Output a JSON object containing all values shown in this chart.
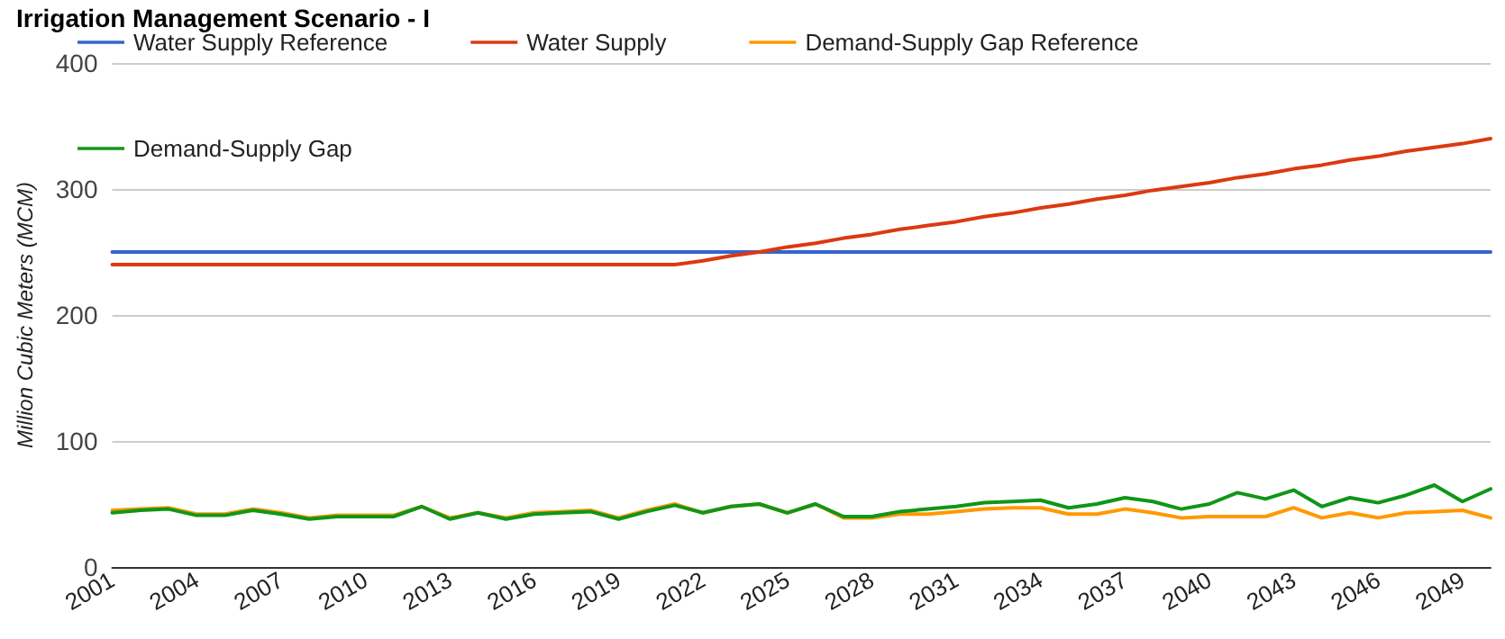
{
  "chart_data": {
    "type": "line",
    "title": "Irrigation Management Scenario - I",
    "ylabel": "Million Cubic Meters (MCM)",
    "categories": [
      "2001",
      null,
      null,
      "2004",
      null,
      null,
      "2007",
      null,
      null,
      "2010",
      null,
      null,
      "2013",
      null,
      null,
      "2016",
      null,
      null,
      "2019",
      null,
      null,
      "2022",
      null,
      null,
      "2025",
      null,
      null,
      "2028",
      null,
      null,
      "2031",
      null,
      null,
      "2034",
      null,
      null,
      "2037",
      null,
      null,
      "2040",
      null,
      null,
      "2043",
      null,
      null,
      "2046",
      null,
      null,
      "2049",
      null
    ],
    "series": [
      {
        "name": "Water Supply Reference",
        "color": "#3366cc",
        "values": [
          250,
          250,
          250,
          250,
          250,
          250,
          250,
          250,
          250,
          250,
          250,
          250,
          250,
          250,
          250,
          250,
          250,
          250,
          250,
          250,
          250,
          250,
          250,
          250,
          250,
          250,
          250,
          250,
          250,
          250,
          250,
          250,
          250,
          250,
          250,
          250,
          250,
          250,
          250,
          250,
          250,
          250,
          250,
          250,
          250,
          250,
          250,
          250,
          250,
          250
        ]
      },
      {
        "name": "Water Supply",
        "color": "#dc3912",
        "values": [
          240,
          240,
          240,
          240,
          240,
          240,
          240,
          240,
          240,
          240,
          240,
          240,
          240,
          240,
          240,
          240,
          240,
          240,
          240,
          240,
          240,
          243,
          247,
          250,
          254,
          257,
          261,
          264,
          268,
          271,
          274,
          278,
          281,
          285,
          288,
          292,
          295,
          299,
          302,
          305,
          309,
          312,
          316,
          319,
          323,
          326,
          330,
          333,
          336,
          340
        ]
      },
      {
        "name": "Demand-Supply Gap Reference",
        "color": "#ff9900",
        "values": [
          45,
          46,
          47,
          42,
          42,
          46,
          43,
          39,
          41,
          41,
          41,
          48,
          39,
          43,
          39,
          43,
          44,
          45,
          39,
          45,
          50,
          43,
          48,
          50,
          43,
          50,
          39,
          39,
          42,
          42,
          44,
          46,
          47,
          47,
          42,
          42,
          46,
          43,
          39,
          40,
          40,
          40,
          47,
          39,
          43,
          39,
          43,
          44,
          45,
          39
        ]
      },
      {
        "name": "Demand-Supply Gap",
        "color": "#109618",
        "values": [
          43,
          45,
          46,
          41,
          41,
          45,
          42,
          38,
          40,
          40,
          40,
          48,
          38,
          43,
          38,
          42,
          43,
          44,
          38,
          44,
          49,
          43,
          48,
          50,
          43,
          50,
          40,
          40,
          44,
          46,
          48,
          51,
          52,
          53,
          47,
          50,
          55,
          52,
          46,
          50,
          59,
          54,
          61,
          48,
          55,
          51,
          57,
          65,
          52,
          62
        ]
      }
    ],
    "ylim": [
      0,
      400
    ],
    "yticks": [
      0,
      100,
      200,
      300,
      400
    ],
    "grid": "y",
    "legend": "top",
    "marker": "none",
    "line_style": "solid"
  }
}
